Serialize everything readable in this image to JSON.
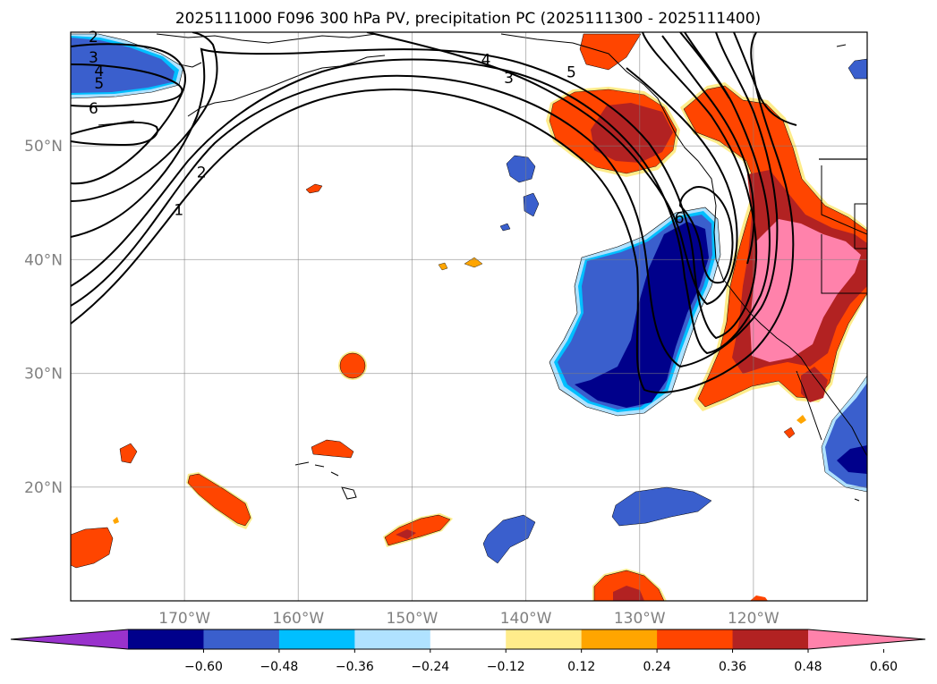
{
  "chart_data": {
    "type": "filled-contour-map",
    "title": "2025111000 F096 300 hPa PV, precipitation PC (2025111300 - 2025111400)",
    "projection": "PlateCarree",
    "lon_range": [
      -180,
      -110
    ],
    "lat_range": [
      10,
      60
    ],
    "x_ticks": [
      {
        "lon": -170,
        "label": "170°W"
      },
      {
        "lon": -160,
        "label": "160°W"
      },
      {
        "lon": -150,
        "label": "150°W"
      },
      {
        "lon": -140,
        "label": "140°W"
      },
      {
        "lon": -130,
        "label": "130°W"
      },
      {
        "lon": -120,
        "label": "120°W"
      }
    ],
    "y_ticks": [
      {
        "lat": 50,
        "label": "50°N"
      },
      {
        "lat": 40,
        "label": "40°N"
      },
      {
        "lat": 30,
        "label": "30°N"
      },
      {
        "lat": 20,
        "label": "20°N"
      }
    ],
    "gridlines": true,
    "colorbar": {
      "orientation": "horizontal",
      "extend": "both",
      "levels": [
        -0.72,
        -0.6,
        -0.48,
        -0.36,
        -0.24,
        -0.12,
        0.12,
        0.24,
        0.36,
        0.48,
        0.6,
        0.72
      ],
      "colors": [
        "#9932CC",
        "#00008B",
        "#3A5FCD",
        "#00BFFF",
        "#B0E2FF",
        "#FFFFFF",
        "#FFEC8B",
        "#FFA500",
        "#FF4500",
        "#B22222",
        "#FF82AB"
      ],
      "tick_labels": [
        "−0.60",
        "−0.48",
        "−0.36",
        "−0.24",
        "−0.12",
        "0.12",
        "0.24",
        "0.36",
        "0.48",
        "0.60"
      ]
    },
    "pv_contour_labels": [
      {
        "text": "2",
        "lon": -178,
        "lat": 59.6
      },
      {
        "text": "3",
        "lon": -178,
        "lat": 57.8
      },
      {
        "text": "4",
        "lon": -177.5,
        "lat": 56.6
      },
      {
        "text": "5",
        "lon": -177.5,
        "lat": 55.5
      },
      {
        "text": "6",
        "lon": -178,
        "lat": 53.3
      },
      {
        "text": "2",
        "lon": -168.5,
        "lat": 47.7
      },
      {
        "text": "1",
        "lon": -170.5,
        "lat": 44.4
      },
      {
        "text": "4",
        "lon": -143.5,
        "lat": 57.6
      },
      {
        "text": "3",
        "lon": -141.5,
        "lat": 56
      },
      {
        "text": "5",
        "lon": -136,
        "lat": 56.5
      },
      {
        "text": "6",
        "lon": -126.5,
        "lat": 43.7
      }
    ]
  }
}
